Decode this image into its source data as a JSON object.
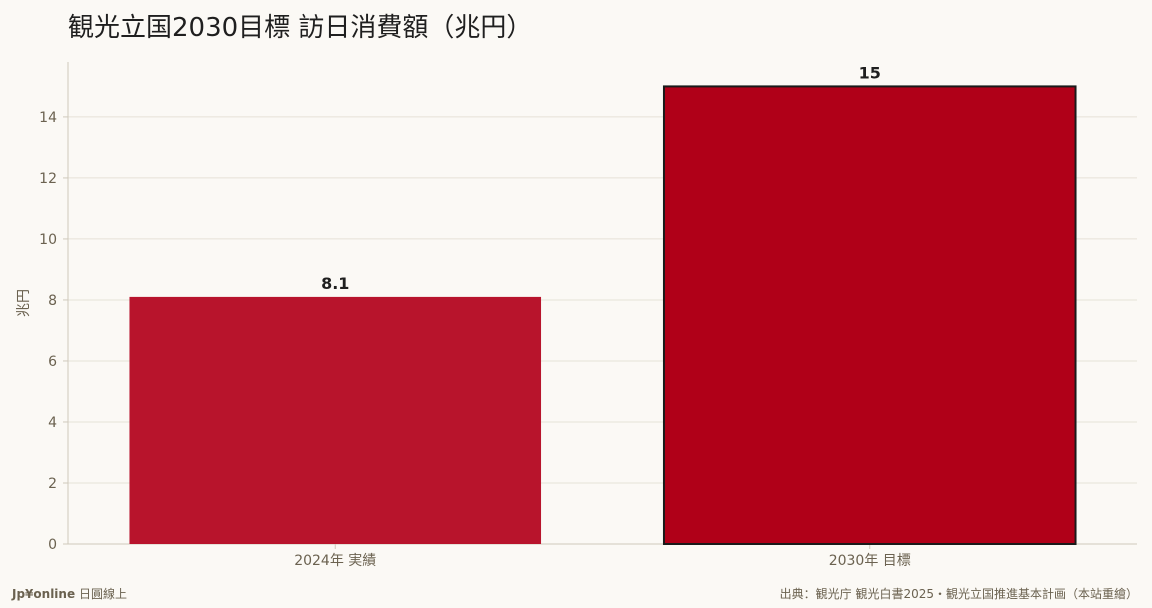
{
  "header": {
    "title": "観光立国2030目標 訪日消費額（兆円）"
  },
  "footer": {
    "brand": "Jp¥online",
    "brand_suffix": "日圓線上",
    "source": "出典：観光庁 観光白書2025・観光立国推進基本計画（本站重繪）"
  },
  "chart_data": {
    "type": "bar",
    "title": "観光立国2030目標 訪日消費額（兆円）",
    "xlabel": "",
    "ylabel": "兆円",
    "categories": [
      "2024年 実績",
      "2030年 目標"
    ],
    "values": [
      8.1,
      15
    ],
    "value_labels": [
      "8.1",
      "15"
    ],
    "ylim": [
      0,
      15.8
    ],
    "yticks": [
      0,
      2,
      4,
      6,
      8,
      10,
      12,
      14
    ],
    "grid": true,
    "legend": "none",
    "colors": {
      "bar_actual": "#b8142c",
      "bar_target": "#b00018",
      "target_outline": "#1a1a1a",
      "grid": "#e6e2d8",
      "axis": "#cfc9bc"
    }
  }
}
